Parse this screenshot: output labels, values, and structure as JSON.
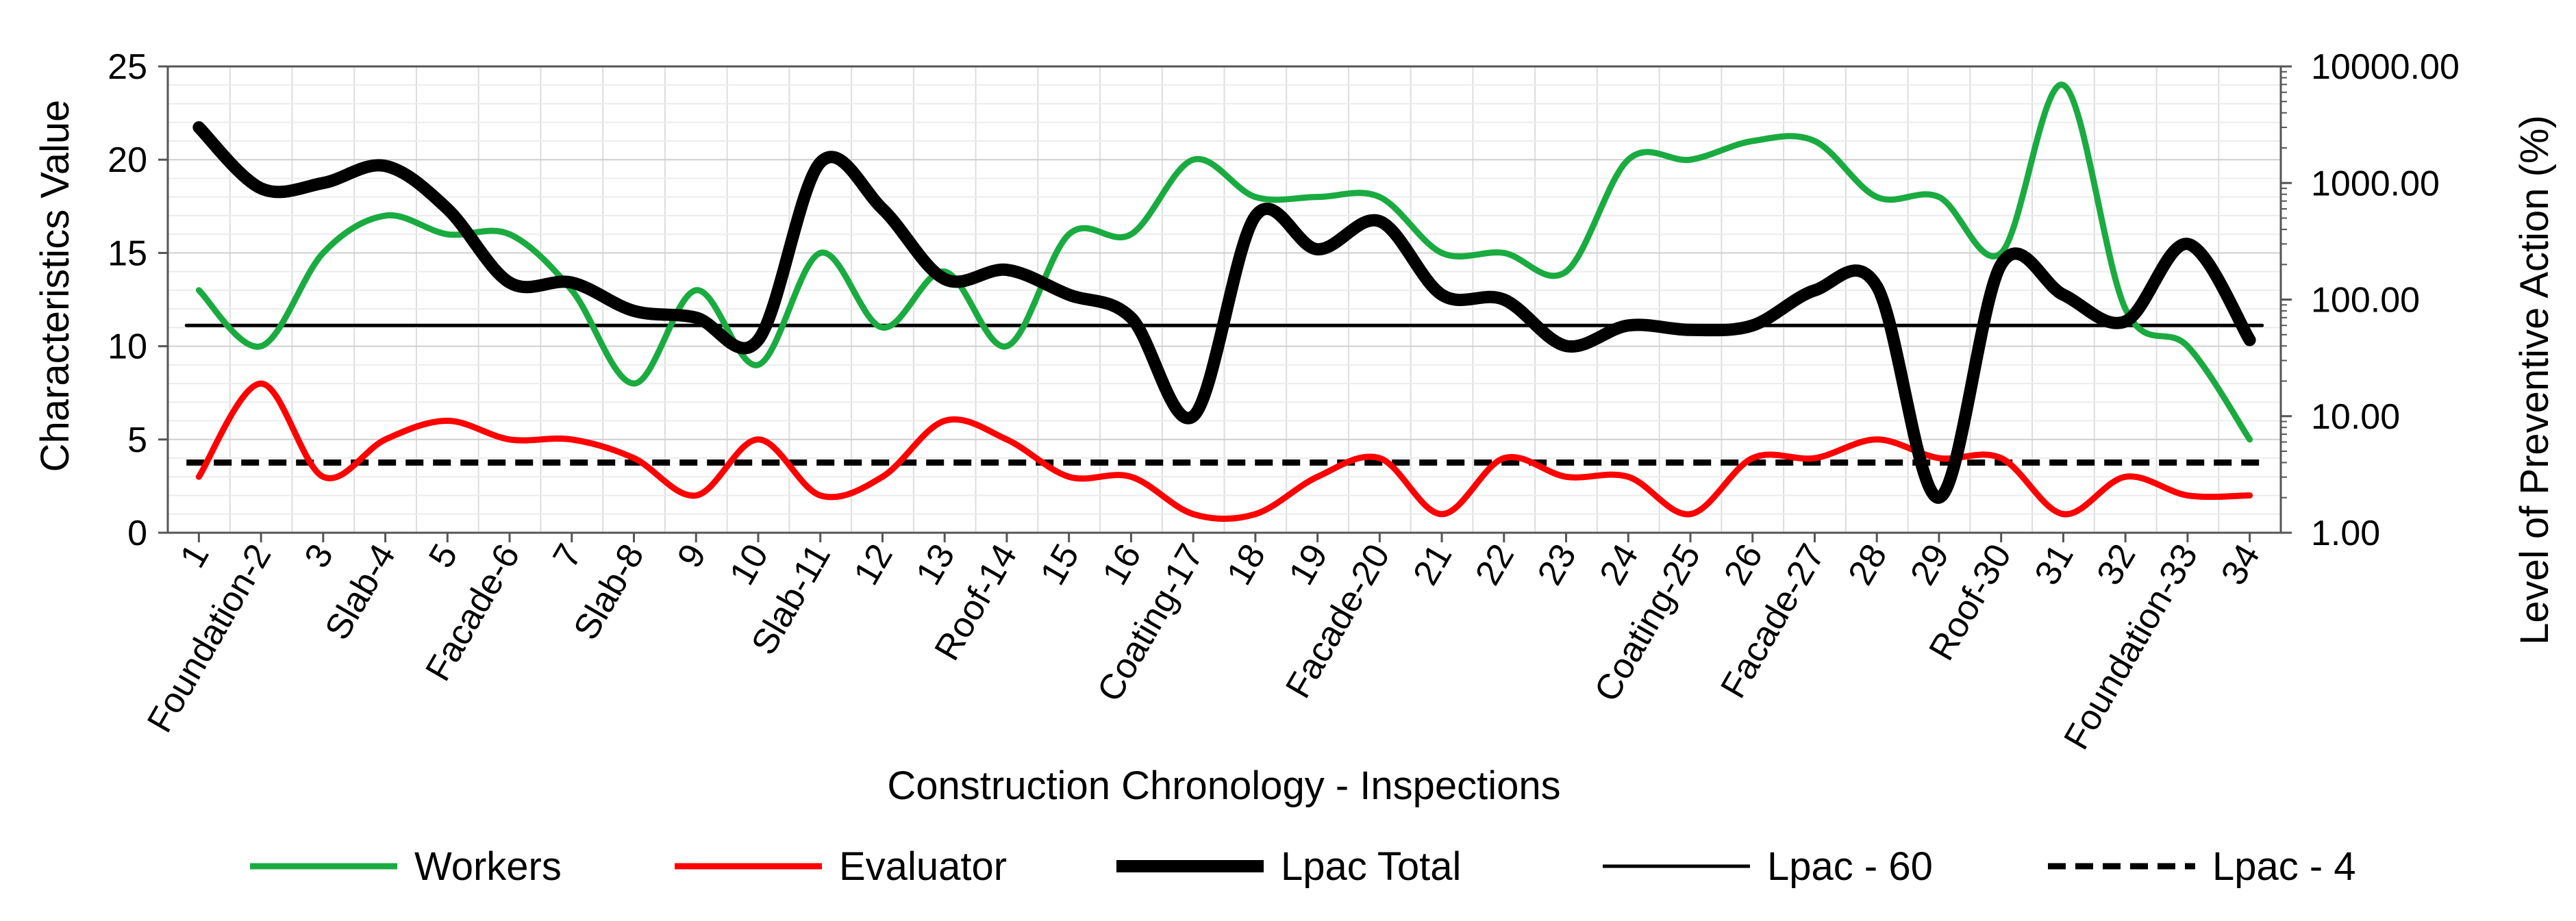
{
  "chart_data": {
    "type": "line",
    "xlabel": "Construction Chronology - Inspections",
    "ylabel_left": "Characteristics Value",
    "ylabel_right": "Level of Preventive Action (%)",
    "ylim_left": [
      0,
      25
    ],
    "yticks_left": [
      "0",
      "5",
      "10",
      "15",
      "20",
      "25"
    ],
    "yticks_left_values": [
      0,
      5,
      10,
      15,
      20,
      25
    ],
    "ylim_right": [
      1,
      10000
    ],
    "yscale_right": "log",
    "yticks_right": [
      "1.00",
      "10.00",
      "100.00",
      "1000.00",
      "10000.00"
    ],
    "yticks_right_values": [
      1,
      10,
      100,
      1000,
      10000
    ],
    "grid": true,
    "legend_position": "bottom",
    "categories": [
      "1",
      "Foundation-2",
      "3",
      "Slab-4",
      "5",
      "Facade-6",
      "7",
      "Slab-8",
      "9",
      "10",
      "Slab-11",
      "12",
      "13",
      "Roof-14",
      "15",
      "16",
      "Coating-17",
      "18",
      "19",
      "Facade-20",
      "21",
      "22",
      "23",
      "24",
      "Coating-25",
      "26",
      "Facade-27",
      "28",
      "29",
      "Roof-30",
      "31",
      "32",
      "Foundation-33",
      "34"
    ],
    "series": [
      {
        "name": "Workers",
        "axis": "left",
        "color": "#1aab40",
        "style": "solid",
        "weight": "medium",
        "values": [
          13,
          10,
          15,
          17,
          16,
          16,
          13,
          8,
          13,
          9,
          15,
          11,
          14,
          10,
          16,
          16,
          20,
          18,
          18,
          18,
          15,
          15,
          14,
          20,
          20,
          21,
          21,
          18,
          18,
          15,
          24,
          12,
          10,
          5
        ]
      },
      {
        "name": "Evaluator",
        "axis": "left",
        "color": "#ff0000",
        "style": "solid",
        "weight": "medium",
        "values": [
          3,
          8,
          3,
          5,
          6,
          5,
          5,
          4,
          2,
          5,
          2,
          3,
          6,
          5,
          3,
          3,
          1,
          1,
          3,
          4,
          1,
          4,
          3,
          3,
          1,
          4,
          4,
          5,
          4,
          4,
          1,
          3,
          2,
          2
        ]
      },
      {
        "name": "Lpac Total",
        "axis": "right",
        "color": "#000000",
        "style": "solid",
        "weight": "bold",
        "values": [
          3000,
          900,
          1000,
          1400,
          600,
          140,
          140,
          80,
          70,
          45,
          1500,
          600,
          150,
          180,
          110,
          70,
          10,
          520,
          270,
          470,
          110,
          100,
          40,
          60,
          55,
          60,
          120,
          130,
          2,
          200,
          110,
          65,
          300,
          45
        ]
      },
      {
        "name": "Lpac - 60",
        "axis": "right",
        "color": "#000000",
        "style": "solid",
        "weight": "thin",
        "values": [
          60,
          60,
          60,
          60,
          60,
          60,
          60,
          60,
          60,
          60,
          60,
          60,
          60,
          60,
          60,
          60,
          60,
          60,
          60,
          60,
          60,
          60,
          60,
          60,
          60,
          60,
          60,
          60,
          60,
          60,
          60,
          60,
          60,
          60
        ]
      },
      {
        "name": "Lpac - 4",
        "axis": "right",
        "color": "#000000",
        "style": "dashed",
        "weight": "medium",
        "values": [
          4,
          4,
          4,
          4,
          4,
          4,
          4,
          4,
          4,
          4,
          4,
          4,
          4,
          4,
          4,
          4,
          4,
          4,
          4,
          4,
          4,
          4,
          4,
          4,
          4,
          4,
          4,
          4,
          4,
          4,
          4,
          4,
          4,
          4
        ]
      }
    ]
  }
}
